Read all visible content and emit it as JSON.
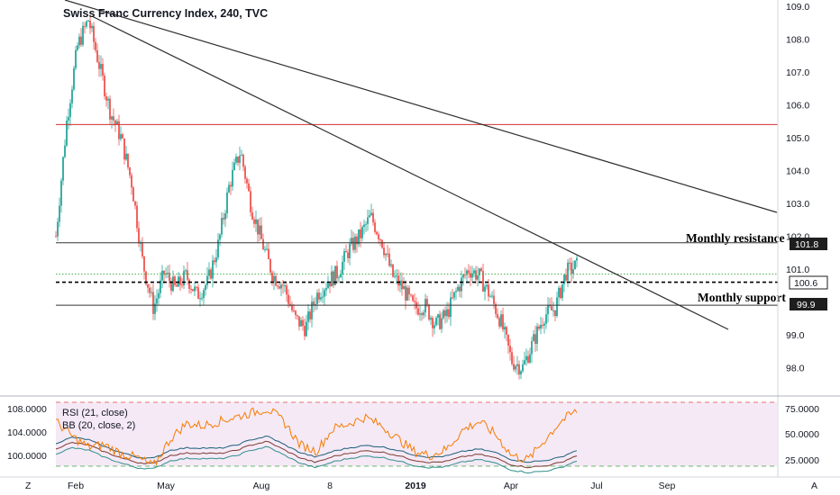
{
  "chart_data": [
    {
      "type": "candlestick",
      "title": "Swiss Franc Currency Index, 240, TVC",
      "y_ticks": [
        "109.0",
        "108.0",
        "107.0",
        "106.0",
        "105.0",
        "104.0",
        "103.0",
        "102.0",
        "101.0",
        "99.0",
        "98.0"
      ],
      "x_ticks": [
        "Feb",
        "May",
        "Aug",
        "8",
        "2019",
        "Apr",
        "Jul",
        "Sep"
      ],
      "ylim": [
        97.2,
        109.2
      ],
      "path_x": [
        0,
        4,
        8,
        12,
        16,
        20,
        24,
        28,
        32,
        36,
        40,
        44,
        48,
        52,
        56,
        60,
        64,
        68,
        72,
        76,
        80,
        84,
        88,
        92,
        96,
        100,
        104,
        108,
        112,
        116,
        120,
        124,
        128,
        132,
        136,
        140,
        144,
        148,
        152,
        156,
        160,
        164,
        168,
        172,
        176,
        180,
        184,
        188,
        192
      ],
      "path_y": [
        102.0,
        105.5,
        107.8,
        108.6,
        107.2,
        105.8,
        105.0,
        103.6,
        101.2,
        99.8,
        100.9,
        100.4,
        100.8,
        100.2,
        100.6,
        101.8,
        103.6,
        104.6,
        102.9,
        101.8,
        100.8,
        100.5,
        99.5,
        99.2,
        100.2,
        100.6,
        100.9,
        101.6,
        102.0,
        102.6,
        101.9,
        100.8,
        100.4,
        99.8,
        99.9,
        99.3,
        99.6,
        100.4,
        101.0,
        100.8,
        100.2,
        99.4,
        98.2,
        98.0,
        98.8,
        99.6,
        99.8,
        100.9,
        101.1
      ],
      "hlines": [
        {
          "value": 105.4,
          "color": "#d32f2f",
          "style": "solid"
        },
        {
          "value": 101.8,
          "color": "#333333",
          "style": "solid"
        },
        {
          "value": 100.85,
          "color": "#4caf50",
          "style": "dotted"
        },
        {
          "value": 100.6,
          "color": "#000000",
          "style": "dashed"
        },
        {
          "value": 99.9,
          "color": "#333333",
          "style": "solid"
        }
      ],
      "annotations": [
        {
          "text": "Monthly resistance",
          "value": 101.8
        },
        {
          "text": "Monthly support",
          "value": 99.9
        }
      ],
      "price_tags": [
        {
          "label": "101.8",
          "style": "dark"
        },
        {
          "label": "100.6",
          "style": "light"
        },
        {
          "label": "99.9",
          "style": "dark"
        }
      ],
      "colors": {
        "up": "#26a69a",
        "down": "#ef5350"
      }
    },
    {
      "type": "line",
      "indicators": [
        {
          "name": "RSI (21, close)",
          "color": "#f57c00"
        },
        {
          "name": "BB (20, close, 2)",
          "color": "#2e6b80"
        }
      ],
      "left_ticks": [
        "108.0000",
        "104.0000",
        "100.0000"
      ],
      "right_ticks": [
        "75.0000",
        "50.0000",
        "25.0000"
      ],
      "rsi_levels": [
        80,
        20
      ],
      "rsi_path_x": [
        0,
        6,
        12,
        18,
        24,
        30,
        36,
        42,
        48,
        54,
        60,
        66,
        72,
        78,
        84,
        90,
        96,
        102,
        108,
        114,
        120,
        126,
        132,
        138,
        144,
        150,
        156,
        162,
        168,
        174,
        180,
        186,
        192
      ],
      "rsi_path_y": [
        62,
        48,
        38,
        40,
        32,
        28,
        20,
        45,
        60,
        58,
        62,
        66,
        70,
        74,
        62,
        40,
        34,
        55,
        60,
        66,
        58,
        46,
        34,
        30,
        36,
        54,
        62,
        50,
        30,
        26,
        44,
        62,
        72
      ],
      "bb_path_y": [
        101.8,
        102.8,
        102.4,
        101.2,
        100.2,
        99.4,
        99.2,
        100.6,
        101.0,
        101.0,
        100.9,
        101.4,
        102.4,
        103.0,
        101.6,
        100.2,
        99.4,
        100.4,
        101.0,
        101.4,
        101.2,
        100.6,
        99.8,
        99.4,
        99.6,
        100.4,
        100.8,
        100.2,
        99.0,
        98.6,
        98.8,
        99.4,
        100.6
      ]
    }
  ],
  "bottom_left_icon": "Z",
  "bottom_right_icon": "A"
}
